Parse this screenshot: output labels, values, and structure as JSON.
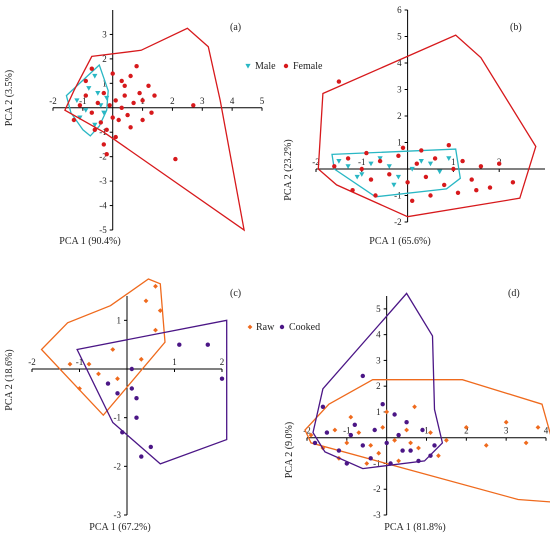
{
  "colors": {
    "male": "#29b7c4",
    "female": "#d7191c",
    "raw": "#ef6a1d",
    "cooked": "#4b1686",
    "axis": "#000000"
  },
  "chart_data": [
    {
      "type": "scatter",
      "panel_label": "(a)",
      "xlabel": "PCA 1 (90.4%)",
      "ylabel": "PCA 2 (3.5%)",
      "xlim": [
        -2,
        5
      ],
      "ylim": [
        -5,
        4
      ],
      "xticks": [
        -2,
        -1,
        1,
        2,
        3,
        4,
        5
      ],
      "yticks": [
        -5,
        -4,
        -3,
        -2,
        -1,
        1,
        2,
        3
      ],
      "legend": [
        "Male",
        "Female"
      ],
      "series": [
        {
          "name": "Male",
          "marker": "triangle-down",
          "color_key": "male",
          "points": [
            [
              -1.2,
              0.3
            ],
            [
              -0.8,
              0.8
            ],
            [
              -0.6,
              1.3
            ],
            [
              -0.5,
              0.6
            ],
            [
              -0.4,
              0.1
            ],
            [
              -0.9,
              -0.1
            ],
            [
              -1.1,
              -0.4
            ],
            [
              -0.6,
              -0.7
            ],
            [
              -0.3,
              -0.2
            ],
            [
              -0.2,
              0.4
            ]
          ],
          "hull": [
            [
              -0.45,
              1.75
            ],
            [
              -1.55,
              0.5
            ],
            [
              -1.4,
              -0.2
            ],
            [
              -1.0,
              -0.9
            ],
            [
              -0.75,
              -1.15
            ],
            [
              -0.45,
              -0.75
            ],
            [
              -0.2,
              -0.1
            ],
            [
              -0.15,
              0.7
            ]
          ]
        },
        {
          "name": "Female",
          "marker": "circle",
          "color_key": "female",
          "points": [
            [
              0.8,
              1.7
            ],
            [
              0.6,
              1.3
            ],
            [
              0.9,
              0.6
            ],
            [
              0.3,
              1.1
            ],
            [
              1.0,
              0.3
            ],
            [
              0.7,
              0.2
            ],
            [
              0.4,
              0.5
            ],
            [
              0.1,
              0.3
            ],
            [
              0.5,
              -0.3
            ],
            [
              0.2,
              -0.5
            ],
            [
              -0.1,
              0.1
            ],
            [
              -0.3,
              0.6
            ],
            [
              -0.5,
              0.2
            ],
            [
              -0.7,
              -0.2
            ],
            [
              -0.4,
              -0.6
            ],
            [
              -0.2,
              -0.9
            ],
            [
              0.0,
              -0.4
            ],
            [
              0.3,
              0.0
            ],
            [
              1.2,
              0.9
            ],
            [
              1.4,
              0.5
            ],
            [
              1.3,
              -0.2
            ],
            [
              1.0,
              -0.5
            ],
            [
              0.6,
              -0.8
            ],
            [
              0.1,
              -1.2
            ],
            [
              -0.6,
              -0.9
            ],
            [
              -0.9,
              0.5
            ],
            [
              -1.1,
              0.1
            ],
            [
              -1.3,
              -0.5
            ],
            [
              2.7,
              0.1
            ],
            [
              2.1,
              -2.1
            ],
            [
              -0.9,
              1.1
            ],
            [
              -0.7,
              1.6
            ],
            [
              0.0,
              1.4
            ],
            [
              -0.3,
              -1.5
            ],
            [
              -0.2,
              -1.9
            ],
            [
              0.4,
              0.9
            ]
          ],
          "hull": [
            [
              -0.7,
              2.1
            ],
            [
              0.95,
              2.35
            ],
            [
              2.5,
              3.25
            ],
            [
              3.2,
              2.5
            ],
            [
              3.6,
              0.3
            ],
            [
              4.4,
              -5.0
            ],
            [
              -0.3,
              -1.0
            ],
            [
              -1.6,
              -0.1
            ],
            [
              -1.3,
              0.7
            ]
          ]
        }
      ]
    },
    {
      "type": "scatter",
      "panel_label": "(b)",
      "xlabel": "PCA 1 (65.6%)",
      "ylabel": "PCA 2 (23.2%)",
      "xlim": [
        -2,
        3
      ],
      "ylim": [
        -2,
        6
      ],
      "xticks": [
        -2,
        -1,
        1,
        2
      ],
      "yticks": [
        -2,
        -1,
        1,
        2,
        3,
        4,
        5,
        6
      ],
      "legend": [
        "Male",
        "Female"
      ],
      "series": [
        {
          "name": "Male",
          "marker": "triangle-down",
          "color_key": "male",
          "points": [
            [
              -1.5,
              0.3
            ],
            [
              -1.3,
              0.1
            ],
            [
              -1.0,
              -0.2
            ],
            [
              -0.8,
              0.2
            ],
            [
              -0.6,
              0.4
            ],
            [
              -0.4,
              0.1
            ],
            [
              -0.2,
              -0.3
            ],
            [
              0.1,
              0.0
            ],
            [
              0.3,
              0.3
            ],
            [
              0.5,
              0.2
            ],
            [
              0.7,
              -0.1
            ],
            [
              0.9,
              0.4
            ],
            [
              -0.3,
              -0.6
            ],
            [
              -1.1,
              -0.3
            ]
          ],
          "hull": [
            [
              -1.65,
              0.55
            ],
            [
              1.05,
              0.75
            ],
            [
              1.15,
              -0.35
            ],
            [
              0.85,
              -0.75
            ],
            [
              -0.7,
              -1.05
            ],
            [
              -1.6,
              0.0
            ]
          ]
        },
        {
          "name": "Female",
          "marker": "circle",
          "color_key": "female",
          "points": [
            [
              -1.5,
              3.3
            ],
            [
              -1.0,
              0.0
            ],
            [
              -0.8,
              -0.4
            ],
            [
              -0.6,
              0.3
            ],
            [
              -0.4,
              -0.2
            ],
            [
              -0.2,
              0.5
            ],
            [
              0.0,
              -0.5
            ],
            [
              0.2,
              0.2
            ],
            [
              0.4,
              -0.3
            ],
            [
              0.6,
              0.4
            ],
            [
              0.8,
              -0.6
            ],
            [
              1.0,
              0.0
            ],
            [
              1.2,
              0.3
            ],
            [
              1.4,
              -0.4
            ],
            [
              1.6,
              0.1
            ],
            [
              1.8,
              -0.7
            ],
            [
              2.0,
              0.2
            ],
            [
              2.3,
              -0.5
            ],
            [
              -1.2,
              -0.8
            ],
            [
              -0.7,
              -1.0
            ],
            [
              0.1,
              -1.2
            ],
            [
              0.5,
              -1.0
            ],
            [
              1.1,
              -0.9
            ],
            [
              1.5,
              -0.8
            ],
            [
              -1.3,
              0.4
            ],
            [
              -0.9,
              0.6
            ],
            [
              -0.1,
              0.8
            ],
            [
              0.3,
              0.7
            ],
            [
              0.9,
              0.9
            ],
            [
              -1.6,
              0.1
            ]
          ],
          "hull": [
            [
              -1.85,
              2.85
            ],
            [
              1.05,
              5.05
            ],
            [
              1.6,
              4.2
            ],
            [
              2.8,
              0.85
            ],
            [
              2.45,
              -1.1
            ],
            [
              0.0,
              -1.8
            ],
            [
              -1.55,
              -0.6
            ],
            [
              -1.95,
              0.0
            ]
          ]
        }
      ]
    },
    {
      "type": "scatter",
      "panel_label": "(c)",
      "xlabel": "PCA 1 (67.2%)",
      "ylabel": "PCA 2 (18.6%)",
      "xlim": [
        -2,
        2
      ],
      "ylim": [
        -3,
        1.5
      ],
      "xticks": [
        -2,
        -1,
        1,
        2
      ],
      "yticks": [
        -3,
        -2,
        -1,
        1
      ],
      "legend": [
        "Raw",
        "Cooked"
      ],
      "series": [
        {
          "name": "Raw",
          "marker": "diamond",
          "color_key": "raw",
          "points": [
            [
              0.4,
              1.4
            ],
            [
              0.7,
              1.2
            ],
            [
              0.6,
              0.8
            ],
            [
              -0.3,
              0.4
            ],
            [
              -0.8,
              0.1
            ],
            [
              -1.0,
              -0.4
            ],
            [
              -0.6,
              -0.1
            ],
            [
              -1.2,
              0.1
            ],
            [
              0.3,
              0.2
            ],
            [
              -0.2,
              -0.2
            ],
            [
              0.6,
              1.7
            ]
          ],
          "hull": [
            [
              -0.35,
              1.3
            ],
            [
              0.45,
              1.85
            ],
            [
              0.7,
              1.75
            ],
            [
              0.8,
              0.55
            ],
            [
              -0.5,
              -0.95
            ],
            [
              -1.8,
              0.4
            ],
            [
              -1.25,
              0.95
            ]
          ]
        },
        {
          "name": "Cooked",
          "marker": "circle",
          "color_key": "cooked",
          "points": [
            [
              -0.2,
              -0.5
            ],
            [
              0.1,
              -0.4
            ],
            [
              0.2,
              -1.0
            ],
            [
              -0.1,
              -1.3
            ],
            [
              0.5,
              -1.6
            ],
            [
              0.3,
              -1.8
            ],
            [
              1.1,
              0.5
            ],
            [
              1.7,
              0.5
            ],
            [
              2.0,
              -0.2
            ],
            [
              0.1,
              0.0
            ],
            [
              -0.4,
              -0.3
            ],
            [
              0.2,
              -0.6
            ]
          ],
          "hull": [
            [
              -1.05,
              0.4
            ],
            [
              2.1,
              1.0
            ],
            [
              2.1,
              -1.45
            ],
            [
              0.7,
              -1.95
            ],
            [
              -0.3,
              -1.1
            ]
          ]
        }
      ]
    },
    {
      "type": "scatter",
      "panel_label": "(d)",
      "xlabel": "PCA 1 (81.8%)",
      "ylabel": "PCA 2 (9.0%)",
      "xlim": [
        -2,
        4
      ],
      "ylim": [
        -3,
        5.5
      ],
      "xticks": [
        -2,
        -1,
        1,
        2,
        3,
        4
      ],
      "yticks": [
        -3,
        -2,
        -1,
        1,
        2,
        3,
        4,
        5
      ],
      "legend": [
        "Raw",
        "Cooked"
      ],
      "series": [
        {
          "name": "Raw",
          "marker": "diamond",
          "color_key": "raw",
          "points": [
            [
              -1.9,
              0.1
            ],
            [
              -1.6,
              -0.4
            ],
            [
              -1.3,
              0.3
            ],
            [
              -1.0,
              -0.2
            ],
            [
              -0.7,
              0.2
            ],
            [
              -0.4,
              -0.3
            ],
            [
              -0.1,
              0.4
            ],
            [
              0.2,
              -0.1
            ],
            [
              0.5,
              0.3
            ],
            [
              0.8,
              -0.4
            ],
            [
              1.1,
              0.2
            ],
            [
              1.5,
              -0.1
            ],
            [
              2.0,
              0.4
            ],
            [
              2.5,
              -0.3
            ],
            [
              3.0,
              0.6
            ],
            [
              3.5,
              -0.2
            ],
            [
              3.8,
              0.4
            ],
            [
              -1.2,
              -0.8
            ],
            [
              -0.5,
              -1.0
            ],
            [
              0.3,
              -0.9
            ],
            [
              1.3,
              -0.7
            ],
            [
              0.0,
              1.0
            ],
            [
              0.7,
              1.2
            ],
            [
              -0.9,
              0.8
            ],
            [
              -0.2,
              -0.6
            ],
            [
              0.6,
              -0.2
            ]
          ],
          "hull": [
            [
              -1.45,
              1.3
            ],
            [
              -0.35,
              2.25
            ],
            [
              1.9,
              2.25
            ],
            [
              3.9,
              1.3
            ],
            [
              4.6,
              -2.55
            ],
            [
              3.3,
              -2.4
            ],
            [
              -1.9,
              -0.2
            ],
            [
              -2.05,
              0.3
            ]
          ]
        },
        {
          "name": "Cooked",
          "marker": "circle",
          "color_key": "cooked",
          "points": [
            [
              -1.8,
              -0.2
            ],
            [
              -1.5,
              0.2
            ],
            [
              -1.2,
              -0.5
            ],
            [
              -0.9,
              0.1
            ],
            [
              -0.6,
              -0.3
            ],
            [
              -0.3,
              0.3
            ],
            [
              0.0,
              -0.2
            ],
            [
              0.3,
              0.1
            ],
            [
              0.6,
              -0.5
            ],
            [
              0.9,
              0.3
            ],
            [
              1.2,
              -0.3
            ],
            [
              0.5,
              0.6
            ],
            [
              -0.8,
              0.5
            ],
            [
              -0.4,
              -0.8
            ],
            [
              0.1,
              -1.0
            ],
            [
              0.8,
              -0.9
            ],
            [
              -1.0,
              -1.0
            ],
            [
              0.2,
              0.9
            ],
            [
              -0.1,
              1.3
            ],
            [
              1.1,
              -0.7
            ],
            [
              0.4,
              -0.5
            ],
            [
              -0.6,
              2.4
            ],
            [
              -1.6,
              1.2
            ]
          ],
          "hull": [
            [
              -1.6,
              1.9
            ],
            [
              0.5,
              5.6
            ],
            [
              1.15,
              3.95
            ],
            [
              1.2,
              1.1
            ],
            [
              1.4,
              -0.2
            ],
            [
              0.95,
              -0.9
            ],
            [
              -0.6,
              -1.2
            ],
            [
              -1.55,
              -0.55
            ],
            [
              -1.85,
              0.2
            ]
          ]
        }
      ]
    }
  ]
}
